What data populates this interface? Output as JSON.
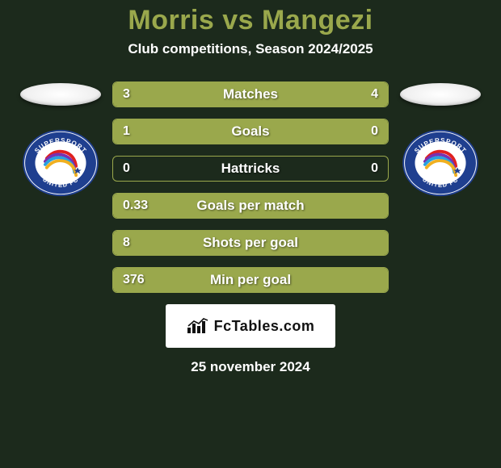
{
  "title": "Morris vs Mangezi",
  "subtitle": "Club competitions, Season 2024/2025",
  "date": "25 november 2024",
  "brand": "FcTables.com",
  "colors": {
    "accent": "#9aa84c",
    "background": "#1c2a1c",
    "text": "#ffffff",
    "brand_bg": "#ffffff",
    "brand_text": "#111111"
  },
  "club_badge": {
    "top_text": "SUPERSPORT",
    "bottom_text": "UNITED FC",
    "ring_color": "#1f3f8f",
    "inner_bg": "#ffffff",
    "logo_colors": [
      "#e02020",
      "#7a30b0",
      "#2aa0e0",
      "#f0b020"
    ]
  },
  "stats": [
    {
      "label": "Matches",
      "left_value": "3",
      "right_value": "4",
      "left_pct": 42,
      "right_pct": 58
    },
    {
      "label": "Goals",
      "left_value": "1",
      "right_value": "0",
      "left_pct": 80,
      "right_pct": 20
    },
    {
      "label": "Hattricks",
      "left_value": "0",
      "right_value": "0",
      "left_pct": 0,
      "right_pct": 0
    },
    {
      "label": "Goals per match",
      "left_value": "0.33",
      "right_value": "",
      "left_pct": 100,
      "right_pct": 0
    },
    {
      "label": "Shots per goal",
      "left_value": "8",
      "right_value": "",
      "left_pct": 100,
      "right_pct": 0
    },
    {
      "label": "Min per goal",
      "left_value": "376",
      "right_value": "",
      "left_pct": 100,
      "right_pct": 0
    }
  ]
}
